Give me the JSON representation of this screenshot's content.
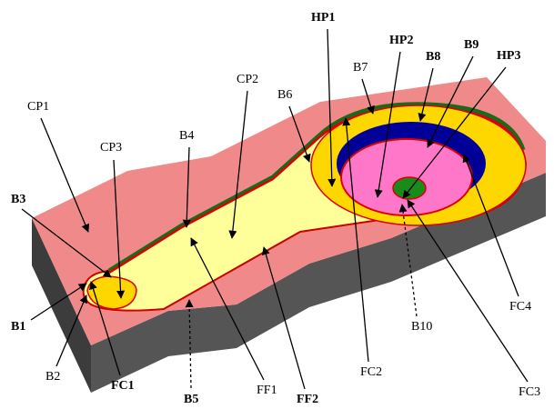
{
  "labels": [
    "CP1",
    "CP3",
    "B4",
    "CP2",
    "B6",
    "HP1",
    "B7",
    "HP2",
    "B8",
    "B9",
    "HP3",
    "B3",
    "B1",
    "B2",
    "FC1",
    "B5",
    "FF1",
    "FF2",
    "FC2",
    "B10",
    "FC3",
    "FC4"
  ]
}
